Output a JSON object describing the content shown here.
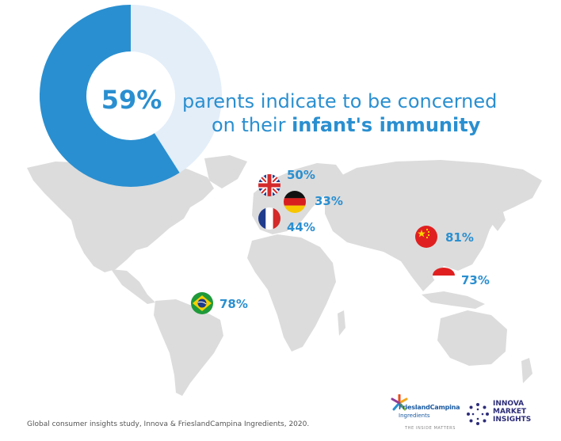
{
  "chart_data": {
    "type": "pie",
    "main": {
      "value": 59,
      "label": "59%"
    },
    "headline": {
      "line1": "parents indicate to be concerned",
      "line2_prefix": "on their ",
      "line2_emphasis": "infant's immunity"
    },
    "countries": [
      {
        "flag": "uk-flag-icon",
        "value": 50,
        "label": "50%"
      },
      {
        "flag": "germany-flag-icon",
        "value": 33,
        "label": "33%"
      },
      {
        "flag": "france-flag-icon",
        "value": 44,
        "label": "44%"
      },
      {
        "flag": "china-flag-icon",
        "value": 81,
        "label": "81%"
      },
      {
        "flag": "indonesia-flag-icon",
        "value": 73,
        "label": "73%"
      },
      {
        "flag": "brazil-flag-icon",
        "value": 78,
        "label": "78%"
      }
    ]
  },
  "footnote": "Global consumer insights study, Innova & FrieslandCampina Ingredients, 2020.",
  "logos": {
    "frieslandcampina": {
      "name": "FrieslandCampina",
      "sub": "Ingredients",
      "tag": "THE INSIDE MATTERS"
    },
    "innova": {
      "line1": "INNOVA",
      "line2": "MARKET",
      "line3": "INSIGHTS"
    }
  },
  "colors": {
    "primary": "#2a8fd0",
    "donut_bg": "#e3eef9",
    "map": "#dcdcdc"
  }
}
